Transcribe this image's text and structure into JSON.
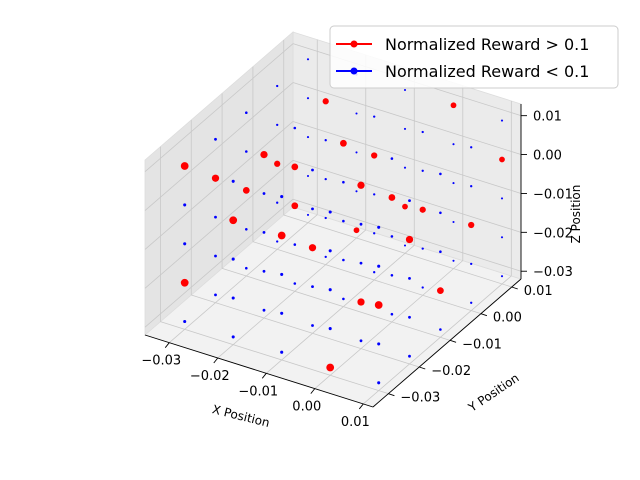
{
  "chart_data": {
    "type": "scatter",
    "projection": "3d",
    "grid": true,
    "legend_position": "top-right",
    "xlabel": "X Position",
    "ylabel": "Y Position",
    "zlabel": "Z Position",
    "xlim": [
      -0.035,
      0.012
    ],
    "ylim": [
      -0.035,
      0.013
    ],
    "zlim": [
      -0.032,
      0.013
    ],
    "x_ticks": [
      -0.03,
      -0.02,
      -0.01,
      0.0,
      0.01
    ],
    "y_ticks": [
      -0.03,
      -0.02,
      -0.01,
      0.0,
      0.01
    ],
    "z_ticks": [
      -0.03,
      -0.02,
      -0.01,
      0.0,
      0.01
    ],
    "x_tick_labels": [
      "−0.03",
      "−0.02",
      "−0.01",
      "0.00",
      "0.01"
    ],
    "y_tick_labels": [
      "−0.03",
      "−0.02",
      "−0.01",
      "0.00",
      "0.01"
    ],
    "z_tick_labels": [
      "−0.03",
      "−0.02",
      "−0.01",
      "0.00",
      "0.01"
    ],
    "grid_points": {
      "values": [
        -0.03,
        -0.02,
        -0.01,
        0.0,
        0.01
      ],
      "description": "regular 5x5x5 lattice of sampled positions",
      "color": "#0000ff"
    },
    "series": [
      {
        "name": "Normalized Reward > 0.1",
        "color": "#ff0000",
        "points": [
          [
            -0.03,
            -0.03,
            0.01
          ],
          [
            -0.03,
            -0.02,
            0.0
          ],
          [
            -0.03,
            -0.01,
            -0.01
          ],
          [
            -0.03,
            -0.03,
            -0.02
          ],
          [
            -0.02,
            -0.03,
            0.0
          ],
          [
            -0.02,
            -0.02,
            0.01
          ],
          [
            -0.02,
            0.0,
            0.01
          ],
          [
            -0.02,
            -0.01,
            -0.01
          ],
          [
            -0.01,
            -0.03,
            0.0
          ],
          [
            -0.01,
            -0.01,
            0.01
          ],
          [
            -0.01,
            0.0,
            0.0
          ],
          [
            -0.01,
            -0.02,
            -0.01
          ],
          [
            0.0,
            -0.01,
            0.0
          ],
          [
            0.0,
            0.0,
            -0.01
          ],
          [
            0.0,
            0.01,
            0.01
          ],
          [
            0.0,
            -0.02,
            -0.02
          ],
          [
            0.01,
            -0.02,
            0.0
          ],
          [
            0.01,
            0.0,
            -0.01
          ],
          [
            0.01,
            0.01,
            0.0
          ],
          [
            0.01,
            -0.01,
            -0.02
          ],
          [
            -0.03,
            0.0,
            -0.01
          ],
          [
            -0.02,
            -0.01,
            0.0
          ],
          [
            0.0,
            -0.02,
            0.01
          ],
          [
            -0.01,
            0.01,
            -0.02
          ],
          [
            0.01,
            -0.03,
            -0.01
          ],
          [
            -0.02,
            0.01,
            -0.03
          ],
          [
            0.0,
            -0.03,
            -0.03
          ]
        ]
      },
      {
        "name": "Normalized Reward < 0.1",
        "color": "#0000ff",
        "points": "all remaining lattice positions"
      }
    ]
  }
}
